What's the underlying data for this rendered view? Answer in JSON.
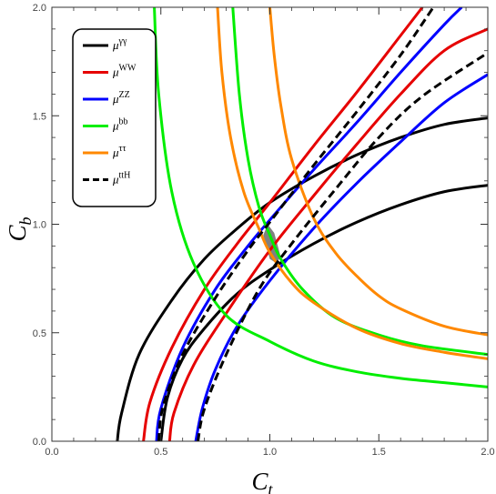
{
  "chart_data": {
    "type": "line",
    "xlabel": {
      "main": "C",
      "sub": "t"
    },
    "ylabel": {
      "main": "C",
      "sub": "b"
    },
    "xlim": [
      0.0,
      2.0
    ],
    "ylim": [
      0.0,
      2.0
    ],
    "x_ticks": [
      "0.0",
      "0.5",
      "1.0",
      "1.5",
      "2.0"
    ],
    "y_ticks": [
      "0.0",
      "0.5",
      "1.0",
      "1.5",
      "2.0"
    ],
    "grid": false,
    "legend_position": "top-left",
    "series": [
      {
        "name": {
          "base": "μ",
          "sup": "γγ"
        },
        "color": "#000000",
        "dash": "solid",
        "curves": [
          {
            "x": [
              0.3,
              0.32,
              0.4,
              0.55,
              0.7,
              0.85,
              1.0,
              1.2,
              1.4,
              1.6,
              1.8,
              2.0
            ],
            "y": [
              0.0,
              0.13,
              0.4,
              0.65,
              0.84,
              0.98,
              1.1,
              1.22,
              1.32,
              1.4,
              1.46,
              1.49
            ]
          },
          {
            "x": [
              0.5,
              0.53,
              0.6,
              0.7,
              0.85,
              1.0,
              1.2,
              1.4,
              1.6,
              1.8,
              2.0
            ],
            "y": [
              0.0,
              0.2,
              0.38,
              0.52,
              0.68,
              0.79,
              0.91,
              1.01,
              1.09,
              1.15,
              1.18
            ]
          }
        ]
      },
      {
        "name": {
          "base": "μ",
          "sup": "WW"
        },
        "color": "#e60000",
        "dash": "solid",
        "curves": [
          {
            "x": [
              0.42,
              0.45,
              0.55,
              0.7,
              0.85,
              1.0,
              1.2,
              1.4,
              1.6,
              1.7
            ],
            "y": [
              0.0,
              0.18,
              0.43,
              0.7,
              0.91,
              1.1,
              1.36,
              1.61,
              1.87,
              2.0
            ]
          },
          {
            "x": [
              0.54,
              0.56,
              0.65,
              0.8,
              1.0,
              1.2,
              1.4,
              1.6,
              1.8,
              2.0
            ],
            "y": [
              0.0,
              0.13,
              0.35,
              0.59,
              0.88,
              1.13,
              1.37,
              1.6,
              1.8,
              1.9
            ]
          }
        ]
      },
      {
        "name": {
          "base": "μ",
          "sup": "ZZ"
        },
        "color": "#0000ff",
        "dash": "solid",
        "curves": [
          {
            "x": [
              0.48,
              0.5,
              0.6,
              0.75,
              0.9,
              1.0,
              1.2,
              1.4,
              1.6,
              1.8,
              1.88
            ],
            "y": [
              0.0,
              0.15,
              0.43,
              0.7,
              0.9,
              1.02,
              1.25,
              1.47,
              1.7,
              1.92,
              2.0
            ]
          },
          {
            "x": [
              0.66,
              0.69,
              0.75,
              0.85,
              1.0,
              1.2,
              1.4,
              1.6,
              1.8,
              2.0
            ],
            "y": [
              0.0,
              0.15,
              0.33,
              0.53,
              0.74,
              0.98,
              1.19,
              1.38,
              1.56,
              1.69
            ]
          }
        ]
      },
      {
        "name": {
          "base": "μ",
          "sup": "bb"
        },
        "color": "#00ee00",
        "dash": "solid",
        "curves": [
          {
            "x": [
              0.47,
              0.49,
              0.55,
              0.65,
              0.8,
              1.0,
              1.2,
              1.4,
              1.6,
              1.8,
              2.0
            ],
            "y": [
              2.0,
              1.6,
              1.15,
              0.82,
              0.58,
              0.46,
              0.37,
              0.32,
              0.29,
              0.27,
              0.25
            ]
          },
          {
            "x": [
              0.83,
              0.86,
              0.9,
              0.95,
              1.0,
              1.05,
              1.15,
              1.3,
              1.5,
              1.7,
              2.0
            ],
            "y": [
              2.0,
              1.6,
              1.3,
              1.08,
              0.95,
              0.84,
              0.7,
              0.57,
              0.49,
              0.44,
              0.4
            ]
          }
        ]
      },
      {
        "name": {
          "base": "μ",
          "sup": "ττ"
        },
        "color": "#ff8800",
        "dash": "solid",
        "curves": [
          {
            "x": [
              0.76,
              0.78,
              0.82,
              0.88,
              0.95,
              1.0,
              1.1,
              1.2,
              1.4,
              1.6,
              1.8,
              2.0
            ],
            "y": [
              2.0,
              1.7,
              1.4,
              1.15,
              0.98,
              0.87,
              0.73,
              0.64,
              0.52,
              0.45,
              0.41,
              0.38
            ]
          },
          {
            "x": [
              1.0,
              1.02,
              1.05,
              1.1,
              1.2,
              1.3,
              1.4,
              1.5,
              1.6,
              1.8,
              2.0
            ],
            "y": [
              2.0,
              1.78,
              1.55,
              1.3,
              1.03,
              0.87,
              0.76,
              0.67,
              0.61,
              0.53,
              0.49
            ]
          }
        ]
      },
      {
        "name": {
          "base": "μ",
          "sup": "ttH"
        },
        "color": "#000000",
        "dash": "dashed",
        "curves": [
          {
            "x": [
              0.49,
              0.51,
              0.6,
              0.75,
              0.9,
              1.0,
              1.2,
              1.4,
              1.6,
              1.75
            ],
            "y": [
              0.0,
              0.16,
              0.4,
              0.66,
              0.88,
              1.01,
              1.27,
              1.52,
              1.78,
              2.0
            ]
          },
          {
            "x": [
              0.67,
              0.7,
              0.8,
              0.95,
              1.1,
              1.3,
              1.5,
              1.7,
              2.0
            ],
            "y": [
              0.0,
              0.15,
              0.4,
              0.7,
              0.91,
              1.16,
              1.4,
              1.59,
              1.79
            ]
          }
        ]
      }
    ],
    "allowed_region": {
      "color": "#808080",
      "polygon": [
        [
          0.97,
          0.95
        ],
        [
          0.99,
          1.0
        ],
        [
          1.02,
          0.96
        ],
        [
          1.05,
          0.85
        ],
        [
          1.03,
          0.82
        ],
        [
          1.0,
          0.84
        ]
      ]
    }
  }
}
